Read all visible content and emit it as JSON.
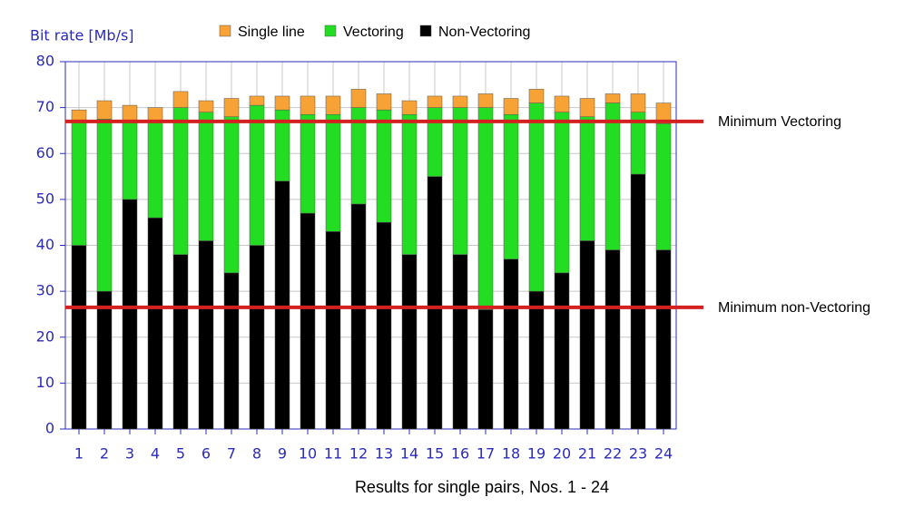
{
  "chart_data": {
    "type": "stacked_bar",
    "y_label": "Bit rate [Mb/s]",
    "x_label": "Results for single pairs, Nos. 1 - 24",
    "categories": [
      "1",
      "2",
      "3",
      "4",
      "5",
      "6",
      "7",
      "8",
      "9",
      "10",
      "11",
      "12",
      "13",
      "14",
      "15",
      "16",
      "17",
      "18",
      "19",
      "20",
      "21",
      "22",
      "23",
      "24"
    ],
    "series": [
      {
        "name": "Single line",
        "color": "#f7a234",
        "values": [
          2.5,
          4,
          3.5,
          3,
          3.5,
          2.5,
          4,
          2,
          3,
          4,
          4,
          4,
          3.5,
          3,
          2.5,
          2.5,
          3,
          3.5,
          3,
          3.5,
          4,
          2,
          4,
          4.5
        ]
      },
      {
        "name": "Vectoring",
        "color": "#22dd22",
        "values": [
          27,
          37.5,
          17,
          21,
          32,
          28,
          34,
          30.5,
          15.5,
          21.5,
          25.5,
          21,
          24.5,
          30.5,
          15,
          32,
          44,
          31.5,
          41,
          35,
          27,
          32,
          13.5,
          27.5
        ]
      },
      {
        "name": "Non-Vectoring",
        "color": "#000000",
        "values": [
          40,
          30,
          50,
          46,
          38,
          41,
          34,
          40,
          54,
          47,
          43,
          49,
          45,
          38,
          55,
          38,
          26,
          37,
          30,
          34,
          41,
          39,
          55.5,
          39
        ]
      }
    ],
    "reference_lines": [
      {
        "label": "Minimum Vectoring",
        "value": 67,
        "color": "#d42020"
      },
      {
        "label": "Minimum non-Vectoring",
        "value": 26.5,
        "color": "#d42020"
      }
    ],
    "ylim": [
      0,
      80
    ],
    "yticks": [
      0,
      10,
      20,
      30,
      40,
      50,
      60,
      70,
      80
    ],
    "grid": true
  }
}
